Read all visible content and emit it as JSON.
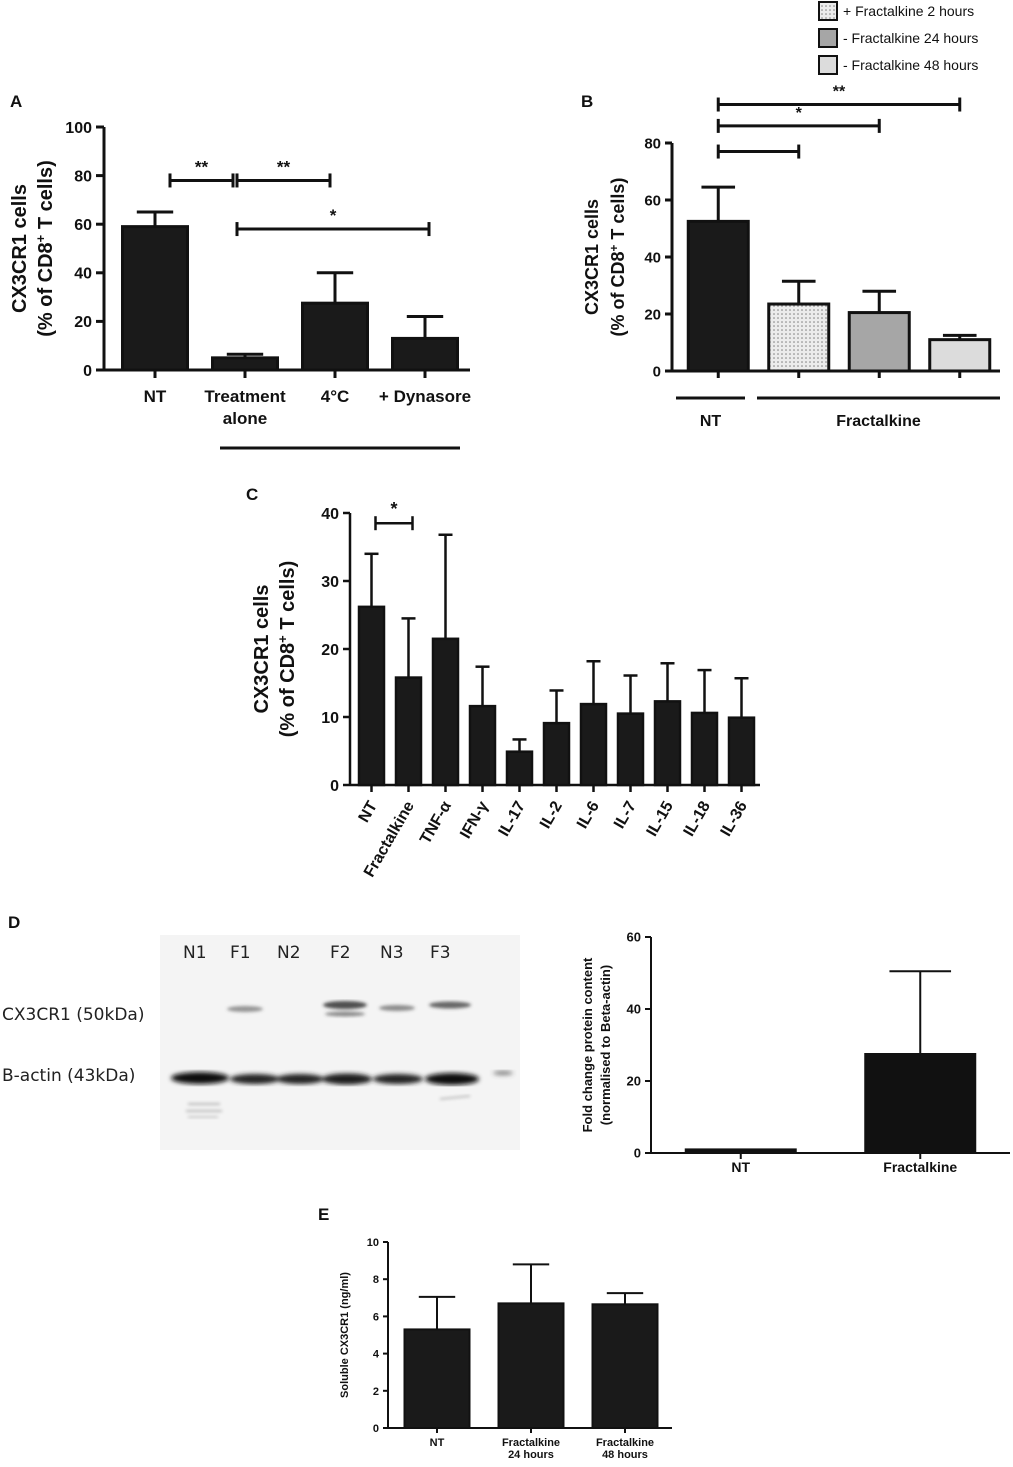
{
  "legend": {
    "entries": [
      {
        "label": "+ Fractalkine 2 hours",
        "fill": "#e8e8e8",
        "pattern": "dots"
      },
      {
        "label": "- Fractalkine 24 hours",
        "fill": "#a6a6a6",
        "pattern": ""
      },
      {
        "label": "- Fractalkine 48 hours",
        "fill": "#dcdcdc",
        "pattern": ""
      }
    ]
  },
  "panels": {
    "A": "A",
    "B": "B",
    "C": "C",
    "D": "D",
    "E": "E"
  },
  "chart_data": [
    {
      "id": "A",
      "type": "bar",
      "ylabel_lines": [
        "CX3CR1 cells",
        "(% of CD8",
        "+",
        " T cells)"
      ],
      "ylim": [
        0,
        100
      ],
      "yticks": [
        0,
        20,
        40,
        60,
        80,
        100
      ],
      "categories": [
        [
          "NT"
        ],
        [
          "Treatment",
          "alone"
        ],
        [
          "4°C"
        ],
        [
          "+ Dynasore"
        ]
      ],
      "values": [
        59,
        5,
        27.5,
        13
      ],
      "errors": [
        6,
        1.5,
        12.5,
        9
      ],
      "fills": [
        "#1a1a1a",
        "#1a1a1a",
        "#1a1a1a",
        "#1a1a1a"
      ],
      "significance": [
        {
          "from": 0,
          "to": 1,
          "label": "**",
          "y": 78
        },
        {
          "from": 1,
          "to": 2,
          "label": "**",
          "y": 78
        },
        {
          "from": 1,
          "to": 3,
          "label": "*",
          "y": 58
        }
      ],
      "group_lines": [
        {
          "from": 1,
          "to": 3,
          "label": ""
        }
      ],
      "grid": false
    },
    {
      "id": "B",
      "type": "bar",
      "ylabel_lines": [
        "CX3CR1 cells",
        "(% of CD8",
        "+",
        " T cells)"
      ],
      "ylim": [
        0,
        80
      ],
      "yticks": [
        0,
        20,
        40,
        60,
        80
      ],
      "categories": [
        [
          ""
        ],
        [
          ""
        ],
        [
          ""
        ],
        [
          ""
        ]
      ],
      "values": [
        52.5,
        23.5,
        20.5,
        11
      ],
      "errors": [
        12,
        8,
        7.5,
        1.5
      ],
      "fills": [
        "#1a1a1a",
        "#e8e8e8",
        "#a6a6a6",
        "#dcdcdc"
      ],
      "patterns": [
        "",
        "dots",
        "",
        ""
      ],
      "significance": [
        {
          "from": 0,
          "to": 1,
          "label": "",
          "y": 77
        },
        {
          "from": 0,
          "to": 2,
          "label": "*",
          "y": 86
        },
        {
          "from": 0,
          "to": 3,
          "label": "**",
          "y": 93.5
        }
      ],
      "group_lines": [
        {
          "from": 0,
          "to": 0,
          "label": "NT"
        },
        {
          "from": 1,
          "to": 3,
          "label": "Fractalkine"
        }
      ],
      "grid": false
    },
    {
      "id": "C",
      "type": "bar",
      "ylabel_lines": [
        "CX3CR1 cells",
        "(% of CD8",
        "+",
        " T cells)"
      ],
      "ylim": [
        0,
        40
      ],
      "yticks": [
        0,
        10,
        20,
        30,
        40
      ],
      "categories": [
        [
          "NT"
        ],
        [
          "Fractalkine"
        ],
        [
          "TNF-α"
        ],
        [
          "IFN-γ"
        ],
        [
          "IL-17"
        ],
        [
          "IL-2"
        ],
        [
          "IL-6"
        ],
        [
          "IL-7"
        ],
        [
          "IL-15"
        ],
        [
          "IL-18"
        ],
        [
          "IL-36"
        ]
      ],
      "values": [
        26.2,
        15.8,
        21.5,
        11.6,
        4.9,
        9.1,
        11.9,
        10.5,
        12.3,
        10.6,
        9.9
      ],
      "errors": [
        7.8,
        8.7,
        15.3,
        5.8,
        1.8,
        4.8,
        6.3,
        5.6,
        5.6,
        6.3,
        5.8
      ],
      "fills": [
        "#1a1a1a",
        "#1a1a1a",
        "#1a1a1a",
        "#1a1a1a",
        "#1a1a1a",
        "#1a1a1a",
        "#1a1a1a",
        "#1a1a1a",
        "#1a1a1a",
        "#1a1a1a",
        "#1a1a1a"
      ],
      "significance": [
        {
          "from": 0,
          "to": 1,
          "label": "*",
          "y": 38.5
        }
      ],
      "group_lines": [],
      "grid": false
    },
    {
      "id": "D",
      "type": "bar",
      "ylabel_lines": [
        "Fold change protein content",
        "(normalised to Beta-actin)"
      ],
      "ylim": [
        0,
        60
      ],
      "yticks": [
        0,
        20,
        40,
        60
      ],
      "categories": [
        [
          "NT"
        ],
        [
          "Fractalkine"
        ]
      ],
      "values": [
        1,
        27.5
      ],
      "errors": [
        0,
        23
      ],
      "fills": [
        "#111111",
        "#111111"
      ],
      "significance": [],
      "group_lines": [],
      "grid": false
    },
    {
      "id": "E",
      "type": "bar",
      "ylabel_lines": [
        "Soluble CX3CR1 (ng/ml)"
      ],
      "ylim": [
        0,
        10
      ],
      "yticks": [
        0,
        2,
        4,
        6,
        8,
        10
      ],
      "categories": [
        [
          "NT"
        ],
        [
          "Fractalkine",
          "24 hours"
        ],
        [
          "Fractalkine",
          "48 hours"
        ]
      ],
      "values": [
        5.3,
        6.7,
        6.65
      ],
      "errors": [
        1.75,
        2.1,
        0.6
      ],
      "fills": [
        "#1a1a1a",
        "#1a1a1a",
        "#1a1a1a"
      ],
      "significance": [],
      "group_lines": [],
      "grid": false
    }
  ],
  "blot": {
    "lanes": [
      "N1",
      "F1",
      "N2",
      "F2",
      "N3",
      "F3"
    ],
    "rows": [
      "CX3CR1 (50kDa)",
      "B-actin (43kDa)"
    ]
  }
}
